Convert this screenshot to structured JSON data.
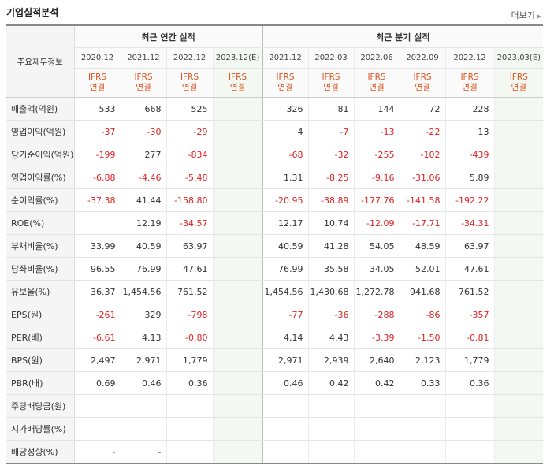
{
  "header": {
    "title": "기업실적분석",
    "more_label": "더보기"
  },
  "table": {
    "corner_label": "주요재무정보",
    "group_annual": "최근 연간 실적",
    "group_quarter": "최근 분기 실적",
    "periods": [
      "2020.12",
      "2021.12",
      "2022.12",
      "2023.12(E)",
      "2021.12",
      "2022.03",
      "2022.06",
      "2022.09",
      "2022.12",
      "2023.03(E)"
    ],
    "basis_line1": "IFRS",
    "basis_line2": "연결",
    "rows": [
      {
        "label": "매출액(억원)",
        "values": [
          "533",
          "668",
          "525",
          "",
          "326",
          "81",
          "144",
          "72",
          "228",
          ""
        ]
      },
      {
        "label": "영업이익(억원)",
        "values": [
          "-37",
          "-30",
          "-29",
          "",
          "4",
          "-7",
          "-13",
          "-22",
          "13",
          ""
        ]
      },
      {
        "label": "당기순이익(억원)",
        "values": [
          "-199",
          "277",
          "-834",
          "",
          "-68",
          "-32",
          "-255",
          "-102",
          "-439",
          ""
        ]
      },
      {
        "label": "영업이익률(%)",
        "values": [
          "-6.88",
          "-4.46",
          "-5.48",
          "",
          "1.31",
          "-8.25",
          "-9.16",
          "-31.06",
          "5.89",
          ""
        ]
      },
      {
        "label": "순이익률(%)",
        "values": [
          "-37.38",
          "41.44",
          "-158.80",
          "",
          "-20.95",
          "-38.89",
          "-177.76",
          "-141.58",
          "-192.22",
          ""
        ]
      },
      {
        "label": "ROE(%)",
        "values": [
          "",
          "12.19",
          "-34.57",
          "",
          "12.17",
          "10.74",
          "-12.09",
          "-17.71",
          "-34.31",
          ""
        ]
      },
      {
        "label": "부채비율(%)",
        "values": [
          "33.99",
          "40.59",
          "63.97",
          "",
          "40.59",
          "41.28",
          "54.05",
          "48.59",
          "63.97",
          ""
        ]
      },
      {
        "label": "당좌비율(%)",
        "values": [
          "96.55",
          "76.99",
          "47.61",
          "",
          "76.99",
          "35.58",
          "34.05",
          "52.01",
          "47.61",
          ""
        ]
      },
      {
        "label": "유보율(%)",
        "values": [
          "36.37",
          "1,454.56",
          "761.52",
          "",
          "1,454.56",
          "1,430.68",
          "1,272.78",
          "941.68",
          "761.52",
          ""
        ]
      },
      {
        "label": "EPS(원)",
        "values": [
          "-261",
          "329",
          "-798",
          "",
          "-77",
          "-36",
          "-288",
          "-86",
          "-357",
          ""
        ]
      },
      {
        "label": "PER(배)",
        "values": [
          "-6.61",
          "4.13",
          "-0.80",
          "",
          "4.14",
          "4.43",
          "-3.39",
          "-1.50",
          "-0.81",
          ""
        ]
      },
      {
        "label": "BPS(원)",
        "values": [
          "2,497",
          "2,971",
          "1,779",
          "",
          "2,971",
          "2,939",
          "2,640",
          "2,123",
          "1,779",
          ""
        ]
      },
      {
        "label": "PBR(배)",
        "values": [
          "0.69",
          "0.46",
          "0.36",
          "",
          "0.46",
          "0.42",
          "0.42",
          "0.33",
          "0.36",
          ""
        ]
      },
      {
        "label": "주당배당금(원)",
        "values": [
          "",
          "",
          "",
          "",
          "",
          "",
          "",
          "",
          "",
          ""
        ]
      },
      {
        "label": "시가배당률(%)",
        "values": [
          "",
          "",
          "",
          "",
          "",
          "",
          "",
          "",
          "",
          ""
        ]
      },
      {
        "label": "배당성향(%)",
        "values": [
          "-",
          "-",
          "",
          "",
          "",
          "",
          "",
          "",
          "",
          ""
        ]
      }
    ]
  }
}
